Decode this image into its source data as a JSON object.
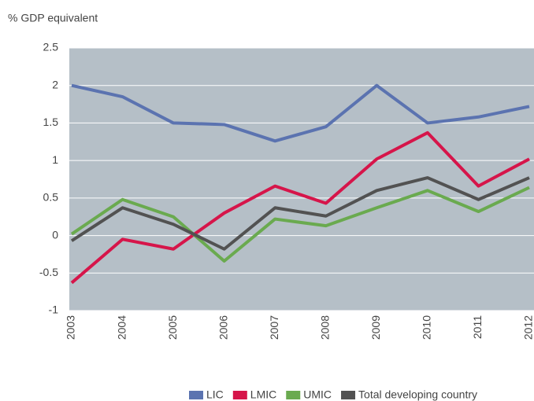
{
  "chart_data": {
    "type": "line",
    "y_label": "% GDP equivalent",
    "categories": [
      "2003",
      "2004",
      "2005",
      "2006",
      "2007",
      "2008",
      "2009",
      "2010",
      "2011",
      "2012"
    ],
    "series": [
      {
        "name": "LIC",
        "color": "#5b73b0",
        "values": [
          2.0,
          1.85,
          1.5,
          1.48,
          1.26,
          1.45,
          2.0,
          1.5,
          1.58,
          1.72
        ]
      },
      {
        "name": "LMIC",
        "color": "#d6154a",
        "values": [
          -0.63,
          -0.05,
          -0.18,
          0.3,
          0.66,
          0.43,
          1.02,
          1.37,
          0.66,
          1.02
        ]
      },
      {
        "name": "UMIC",
        "color": "#6aaa4f",
        "values": [
          0.02,
          0.48,
          0.25,
          -0.34,
          0.22,
          0.13,
          0.37,
          0.6,
          0.32,
          0.64
        ]
      },
      {
        "name": "Total developing country",
        "color": "#525252",
        "values": [
          -0.07,
          0.37,
          0.15,
          -0.18,
          0.37,
          0.26,
          0.6,
          0.77,
          0.48,
          0.77
        ]
      }
    ],
    "ylim": [
      -1,
      2.5
    ],
    "yticks": [
      2.5,
      2,
      1.5,
      1,
      0.5,
      0,
      -0.5,
      -1
    ],
    "grid": true,
    "plot_background": "#b5bfc7"
  }
}
